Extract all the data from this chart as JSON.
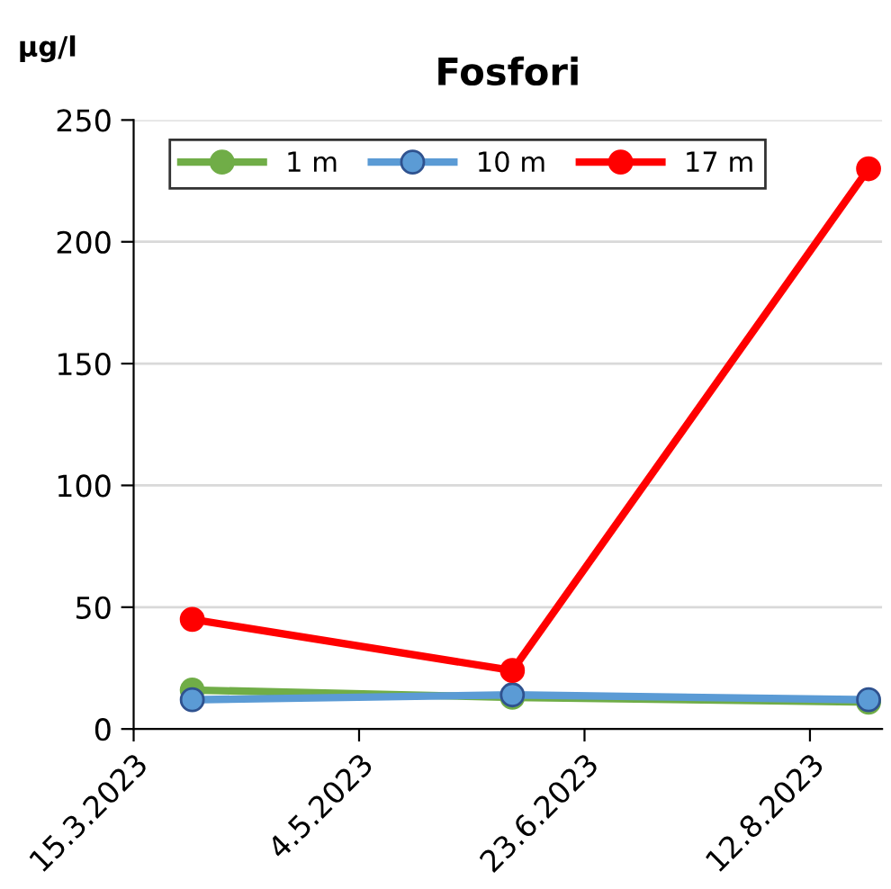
{
  "chart_data": {
    "type": "line",
    "title": "Fosfori",
    "ylabel": "µg/l",
    "x": [
      "2023-03-28",
      "2023-06-07",
      "2023-08-25"
    ],
    "series": [
      {
        "name": "1 m",
        "color": "#70ad47",
        "values": [
          16,
          13,
          11
        ]
      },
      {
        "name": "10 m",
        "color": "#5b9bd5",
        "values": [
          12,
          14,
          12
        ]
      },
      {
        "name": "17 m",
        "color": "#ff0000",
        "values": [
          45,
          24,
          230
        ]
      }
    ],
    "xlim": [
      "2023-03-15",
      "2023-08-28"
    ],
    "xticks": [
      {
        "value": "2023-03-15",
        "label": "15.3.2023"
      },
      {
        "value": "2023-05-04",
        "label": "4.5.2023"
      },
      {
        "value": "2023-06-23",
        "label": "23.6.2023"
      },
      {
        "value": "2023-08-12",
        "label": "12.8.2023"
      }
    ],
    "ylim": [
      0,
      250
    ],
    "yticks": [
      0,
      50,
      100,
      150,
      200,
      250
    ],
    "grid": "y",
    "legend": "top left",
    "marker": "circle",
    "line_style": "solid"
  }
}
